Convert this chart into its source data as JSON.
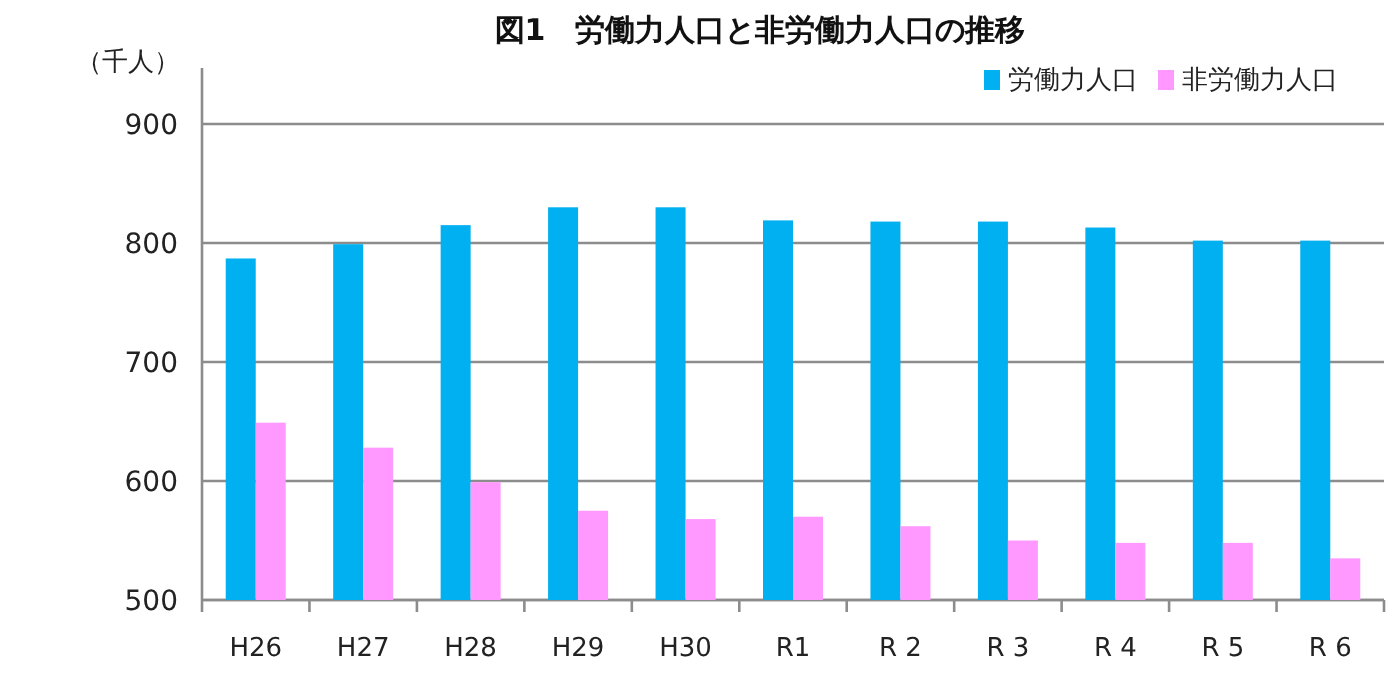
{
  "chart_data": {
    "type": "bar",
    "title": "図1　労働力人口と非労働力人口の推移",
    "ylabel": "（千人）",
    "categories": [
      "H26",
      "H27",
      "H28",
      "H29",
      "H30",
      "R1",
      "R 2",
      "R 3",
      "R 4",
      "R 5",
      "R 6"
    ],
    "series": [
      {
        "name": "労働力人口",
        "color": "#00b0f0",
        "values": [
          787,
          799,
          815,
          830,
          830,
          819,
          818,
          818,
          813,
          802,
          802
        ]
      },
      {
        "name": "非労働力人口",
        "color": "#ff99ff",
        "values": [
          649,
          628,
          599,
          575,
          568,
          570,
          562,
          550,
          548,
          548,
          535
        ]
      }
    ],
    "ylim": [
      500,
      900
    ],
    "yticks": [
      500,
      600,
      700,
      800,
      900
    ],
    "grid": "y",
    "legend": "top right"
  }
}
